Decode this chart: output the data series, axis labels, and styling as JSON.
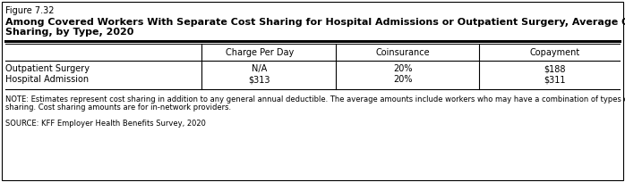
{
  "figure_label": "Figure 7.32",
  "title_line1": "Among Covered Workers With Separate Cost Sharing for Hospital Admissions or Outpatient Surgery, Average Cost",
  "title_line2": "Sharing, by Type, 2020",
  "columns": [
    "Charge Per Day",
    "Coinsurance",
    "Copayment"
  ],
  "rows": [
    "Outpatient Surgery",
    "Hospital Admission"
  ],
  "table_data": [
    [
      "N/A",
      "20%",
      "$188"
    ],
    [
      "$313",
      "20%",
      "$311"
    ]
  ],
  "note_line1": "NOTE: Estimates represent cost sharing in addition to any general annual deductible. The average amounts include workers who may have a combination of types of cost",
  "note_line2": "sharing. Cost sharing amounts are for in-network providers.",
  "source": "SOURCE: KFF Employer Health Benefits Survey, 2020",
  "background_color": "#ffffff",
  "border_color": "#000000",
  "text_color": "#000000"
}
